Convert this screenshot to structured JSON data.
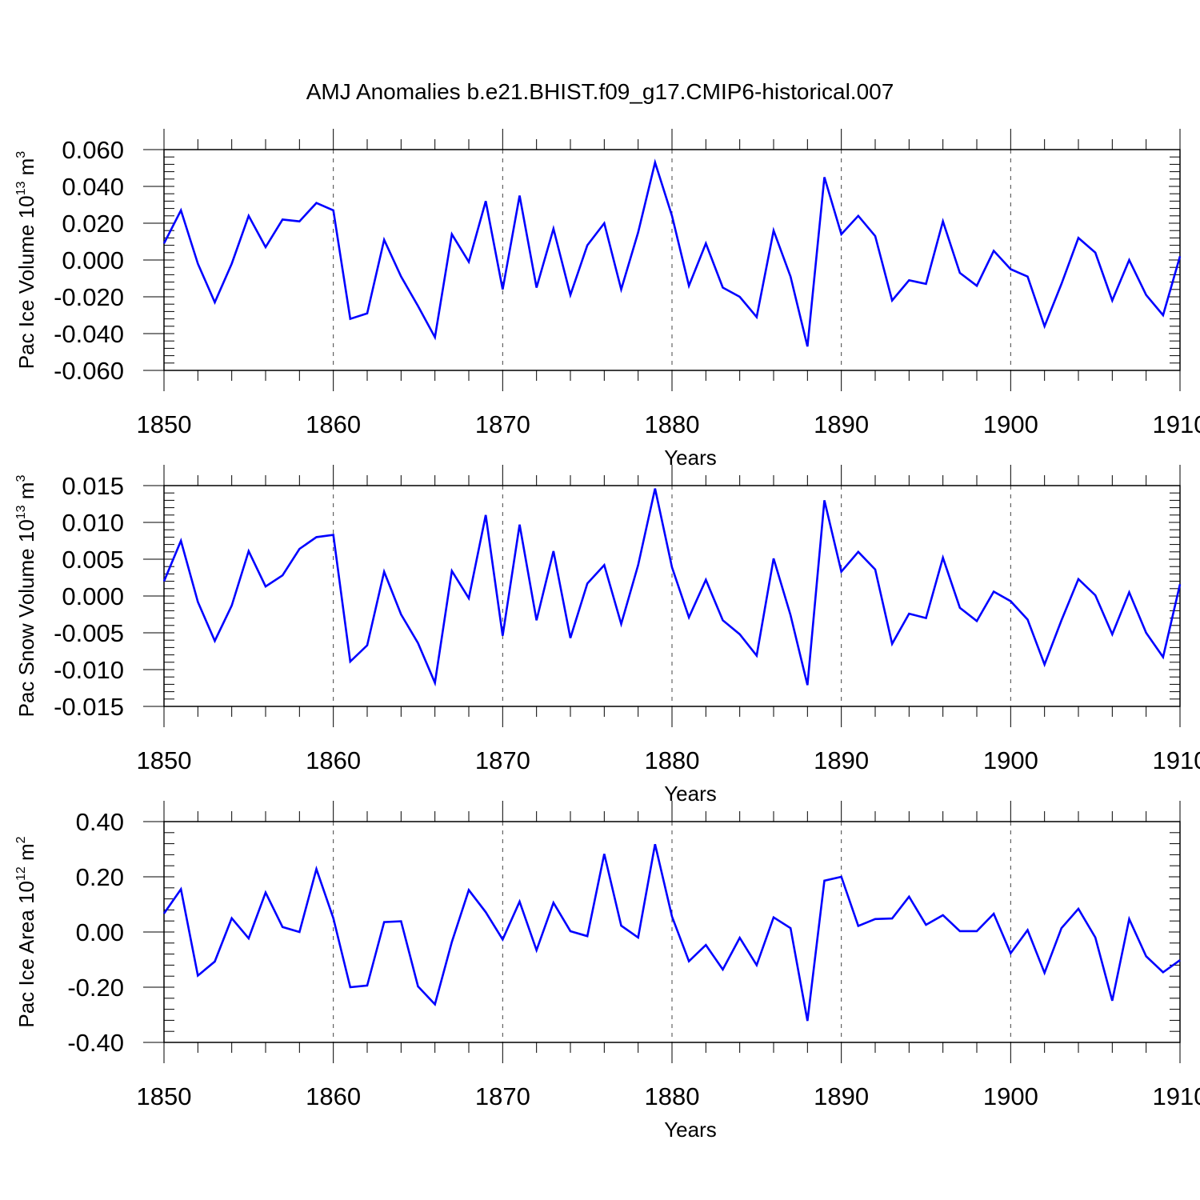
{
  "figure": {
    "title": "AMJ Anomalies b.e21.BHIST.f09_g17.CMIP6-historical.007",
    "line_color": "#0000ff"
  },
  "chart_data": [
    {
      "type": "line",
      "ylabel": "Pac Ice Volume 10",
      "ylabel_exp": "13",
      "ylabel_unit": " m",
      "ylabel_unit_exp": "3",
      "xlabel": "Years",
      "xlim": [
        1850,
        1910
      ],
      "ylim": [
        -0.06,
        0.06
      ],
      "xticks": [
        1850,
        1860,
        1870,
        1880,
        1890,
        1900,
        1910
      ],
      "yticks": [
        0.06,
        0.04,
        0.02,
        0.0,
        -0.02,
        -0.04,
        -0.06
      ],
      "ytick_labels": [
        "0.060",
        "0.040",
        "0.020",
        "0.000",
        "-0.020",
        "-0.040",
        "-0.060"
      ],
      "grid": "vertical dashed at major x ticks",
      "series": [
        {
          "x": [
            1850,
            1851,
            1852,
            1853,
            1854,
            1855,
            1856,
            1857,
            1858,
            1859,
            1860,
            1861,
            1862,
            1863,
            1864,
            1865,
            1866,
            1867,
            1868,
            1869,
            1870,
            1871,
            1872,
            1873,
            1874,
            1875,
            1876,
            1877,
            1878,
            1879,
            1880,
            1881,
            1882,
            1883,
            1884,
            1885,
            1886,
            1887,
            1888,
            1889,
            1890,
            1891,
            1892,
            1893,
            1894,
            1895,
            1896,
            1897,
            1898,
            1899,
            1900,
            1901,
            1902,
            1903,
            1904,
            1905,
            1906,
            1907,
            1908,
            1909,
            1910
          ],
          "values": [
            0.009,
            0.027,
            -0.002,
            -0.023,
            -0.002,
            0.024,
            0.007,
            0.022,
            0.021,
            0.031,
            0.027,
            -0.032,
            -0.029,
            0.011,
            -0.009,
            -0.025,
            -0.042,
            0.014,
            -0.001,
            0.032,
            -0.016,
            0.035,
            -0.015,
            0.017,
            -0.019,
            0.008,
            0.02,
            -0.016,
            0.015,
            0.053,
            0.024,
            -0.014,
            0.009,
            -0.015,
            -0.02,
            -0.031,
            0.016,
            -0.009,
            -0.047,
            0.045,
            0.014,
            0.024,
            0.013,
            -0.022,
            -0.011,
            -0.013,
            0.021,
            -0.007,
            -0.014,
            0.005,
            -0.005,
            -0.009,
            -0.036,
            -0.013,
            0.012,
            0.004,
            -0.022,
            0.0,
            -0.019,
            -0.03,
            0.002
          ]
        }
      ]
    },
    {
      "type": "line",
      "ylabel": "Pac Snow Volume 10",
      "ylabel_exp": "13",
      "ylabel_unit": " m",
      "ylabel_unit_exp": "3",
      "xlabel": "Years",
      "xlim": [
        1850,
        1910
      ],
      "ylim": [
        -0.015,
        0.015
      ],
      "xticks": [
        1850,
        1860,
        1870,
        1880,
        1890,
        1900,
        1910
      ],
      "yticks": [
        0.015,
        0.01,
        0.005,
        0.0,
        -0.005,
        -0.01,
        -0.015
      ],
      "ytick_labels": [
        "0.015",
        "0.010",
        "0.005",
        "0.000",
        "-0.005",
        "-0.010",
        "-0.015"
      ],
      "grid": "vertical dashed at major x ticks",
      "series": [
        {
          "x": [
            1850,
            1851,
            1852,
            1853,
            1854,
            1855,
            1856,
            1857,
            1858,
            1859,
            1860,
            1861,
            1862,
            1863,
            1864,
            1865,
            1866,
            1867,
            1868,
            1869,
            1870,
            1871,
            1872,
            1873,
            1874,
            1875,
            1876,
            1877,
            1878,
            1879,
            1880,
            1881,
            1882,
            1883,
            1884,
            1885,
            1886,
            1887,
            1888,
            1889,
            1890,
            1891,
            1892,
            1893,
            1894,
            1895,
            1896,
            1897,
            1898,
            1899,
            1900,
            1901,
            1902,
            1903,
            1904,
            1905,
            1906,
            1907,
            1908,
            1909,
            1910
          ],
          "values": [
            0.002,
            0.0075,
            -0.0008,
            -0.0061,
            -0.0013,
            0.0061,
            0.0013,
            0.0028,
            0.0064,
            0.008,
            0.0083,
            -0.0089,
            -0.0067,
            0.0033,
            -0.0025,
            -0.0064,
            -0.0118,
            0.0034,
            -0.0003,
            0.011,
            -0.0054,
            0.0097,
            -0.0033,
            0.0061,
            -0.0057,
            0.0017,
            0.0042,
            -0.0038,
            0.0042,
            0.0146,
            0.0039,
            -0.0029,
            0.0022,
            -0.0033,
            -0.0052,
            -0.0081,
            0.0051,
            -0.0026,
            -0.0121,
            0.013,
            0.0033,
            0.006,
            0.0036,
            -0.0065,
            -0.0024,
            -0.003,
            0.0052,
            -0.0016,
            -0.0034,
            0.0006,
            -0.0007,
            -0.0032,
            -0.0093,
            -0.0033,
            0.0023,
            0.0001,
            -0.0052,
            0.0005,
            -0.005,
            -0.0083,
            0.0016
          ]
        }
      ]
    },
    {
      "type": "line",
      "ylabel": "Pac Ice Area 10",
      "ylabel_exp": "12",
      "ylabel_unit": " m",
      "ylabel_unit_exp": "2",
      "xlabel": "Years",
      "xlim": [
        1850,
        1910
      ],
      "ylim": [
        -0.4,
        0.4
      ],
      "xticks": [
        1850,
        1860,
        1870,
        1880,
        1890,
        1900,
        1910
      ],
      "yticks": [
        0.4,
        0.2,
        0.0,
        -0.2,
        -0.4
      ],
      "ytick_labels": [
        "0.40",
        "0.20",
        "0.00",
        "-0.20",
        "-0.40"
      ],
      "grid": "vertical dashed at major x ticks",
      "series": [
        {
          "x": [
            1850,
            1851,
            1852,
            1853,
            1854,
            1855,
            1856,
            1857,
            1858,
            1859,
            1860,
            1861,
            1862,
            1863,
            1864,
            1865,
            1866,
            1867,
            1868,
            1869,
            1870,
            1871,
            1872,
            1873,
            1874,
            1875,
            1876,
            1877,
            1878,
            1879,
            1880,
            1881,
            1882,
            1883,
            1884,
            1885,
            1886,
            1887,
            1888,
            1889,
            1890,
            1891,
            1892,
            1893,
            1894,
            1895,
            1896,
            1897,
            1898,
            1899,
            1900,
            1901,
            1902,
            1903,
            1904,
            1905,
            1906,
            1907,
            1908,
            1909,
            1910
          ],
          "values": [
            0.067,
            0.155,
            -0.158,
            -0.107,
            0.05,
            -0.023,
            0.143,
            0.018,
            0.0,
            0.228,
            0.05,
            -0.2,
            -0.194,
            0.036,
            0.039,
            -0.197,
            -0.262,
            -0.036,
            0.152,
            0.072,
            -0.027,
            0.11,
            -0.066,
            0.106,
            0.003,
            -0.015,
            0.283,
            0.023,
            -0.02,
            0.318,
            0.056,
            -0.106,
            -0.047,
            -0.136,
            -0.021,
            -0.12,
            0.053,
            0.014,
            -0.322,
            0.186,
            0.2,
            0.022,
            0.047,
            0.049,
            0.128,
            0.026,
            0.061,
            0.003,
            0.003,
            0.066,
            -0.077,
            0.007,
            -0.148,
            0.014,
            0.084,
            -0.02,
            -0.249,
            0.047,
            -0.088,
            -0.146,
            -0.102
          ]
        }
      ]
    }
  ]
}
